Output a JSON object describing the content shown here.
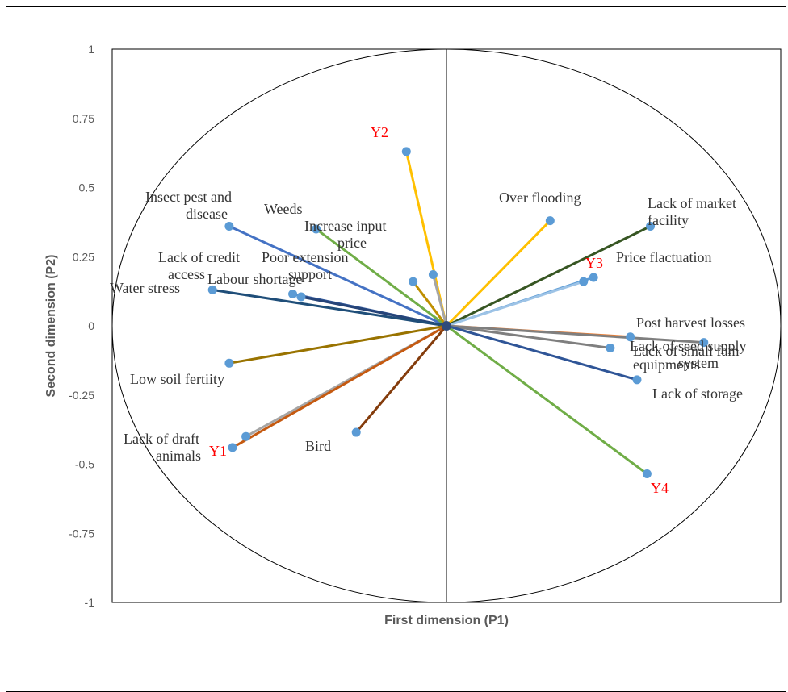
{
  "chart_data": {
    "type": "scatter",
    "subtype": "biplot-vectors",
    "title": "",
    "xlabel": "First dimension (P1)",
    "ylabel": "Second dimension (P2)",
    "xlim": [
      -1,
      1
    ],
    "ylim": [
      -1,
      1
    ],
    "y_ticks": [
      1,
      0.75,
      0.5,
      0.25,
      0,
      -0.25,
      -0.5,
      -0.75,
      -1
    ],
    "y_tick_labels": [
      "1",
      "0.75",
      "0.5",
      "0.25",
      "0",
      "-0.25",
      "-0.5",
      "-0.75",
      "-1"
    ],
    "grid": false,
    "legend": "none",
    "unit_circle": true,
    "marker_color": "#5b9bd5",
    "origin_color": "#2f4a7a",
    "points": [
      {
        "label": "Y2",
        "x": -0.12,
        "y": 0.63,
        "color": "#ffc000",
        "label_color": "red"
      },
      {
        "label": "Over flooding",
        "x": 0.31,
        "y": 0.38,
        "color": "#ffc000",
        "label_color": "black"
      },
      {
        "label": "Lack of market facility",
        "x": 0.61,
        "y": 0.36,
        "color": "#375623",
        "label_color": "black"
      },
      {
        "label": "Y3",
        "x": 0.44,
        "y": 0.175,
        "color": "#5b9bd5",
        "label_color": "red"
      },
      {
        "label": "Price flactuation",
        "x": 0.41,
        "y": 0.16,
        "color": "#9dc3e6",
        "label_color": "black"
      },
      {
        "label": "Post harvest losses",
        "x": 0.55,
        "y": -0.04,
        "color": "#ed7d31",
        "label_color": "black"
      },
      {
        "label": "Lack of seed supply system",
        "x": 0.77,
        "y": -0.06,
        "color": "#7f7f7f",
        "label_color": "black"
      },
      {
        "label": "Lack of small fam equipments",
        "x": 0.49,
        "y": -0.08,
        "color": "#7f7f7f",
        "label_color": "black"
      },
      {
        "label": "Lack of storage",
        "x": 0.57,
        "y": -0.195,
        "color": "#2f5597",
        "label_color": "black"
      },
      {
        "label": "Y4",
        "x": 0.6,
        "y": -0.535,
        "color": "#70ad47",
        "label_color": "red"
      },
      {
        "label": "Insect pest and disease",
        "x": -0.65,
        "y": 0.36,
        "color": "#4472c4",
        "label_color": "black"
      },
      {
        "label": "Weeds",
        "x": -0.39,
        "y": 0.35,
        "color": "#70ad47",
        "label_color": "black"
      },
      {
        "label": "Increase input price",
        "x": -0.1,
        "y": 0.16,
        "color": "#bf8f00",
        "label_color": "black"
      },
      {
        "label": "Poor extension support",
        "x": -0.04,
        "y": 0.185,
        "color": "#a5a5a5",
        "label_color": "black"
      },
      {
        "label": "Lack of credit access",
        "x": -0.46,
        "y": 0.115,
        "color": "#2f5597",
        "label_color": "black"
      },
      {
        "label": "Labour shortage",
        "x": -0.435,
        "y": 0.105,
        "color": "#264478",
        "label_color": "black"
      },
      {
        "label": "Water stress",
        "x": -0.7,
        "y": 0.13,
        "color": "#1f4e79",
        "label_color": "black"
      },
      {
        "label": "Low soil fertiity",
        "x": -0.65,
        "y": -0.135,
        "color": "#997300",
        "label_color": "black"
      },
      {
        "label": "Lack of draft animals",
        "x": -0.6,
        "y": -0.4,
        "color": "#a5a5a5",
        "label_color": "black"
      },
      {
        "label": "Y1",
        "x": -0.64,
        "y": -0.44,
        "color": "#c55a11",
        "label_color": "red"
      },
      {
        "label": "Bird",
        "x": -0.27,
        "y": -0.385,
        "color": "#843c0c",
        "label_color": "black"
      }
    ]
  }
}
